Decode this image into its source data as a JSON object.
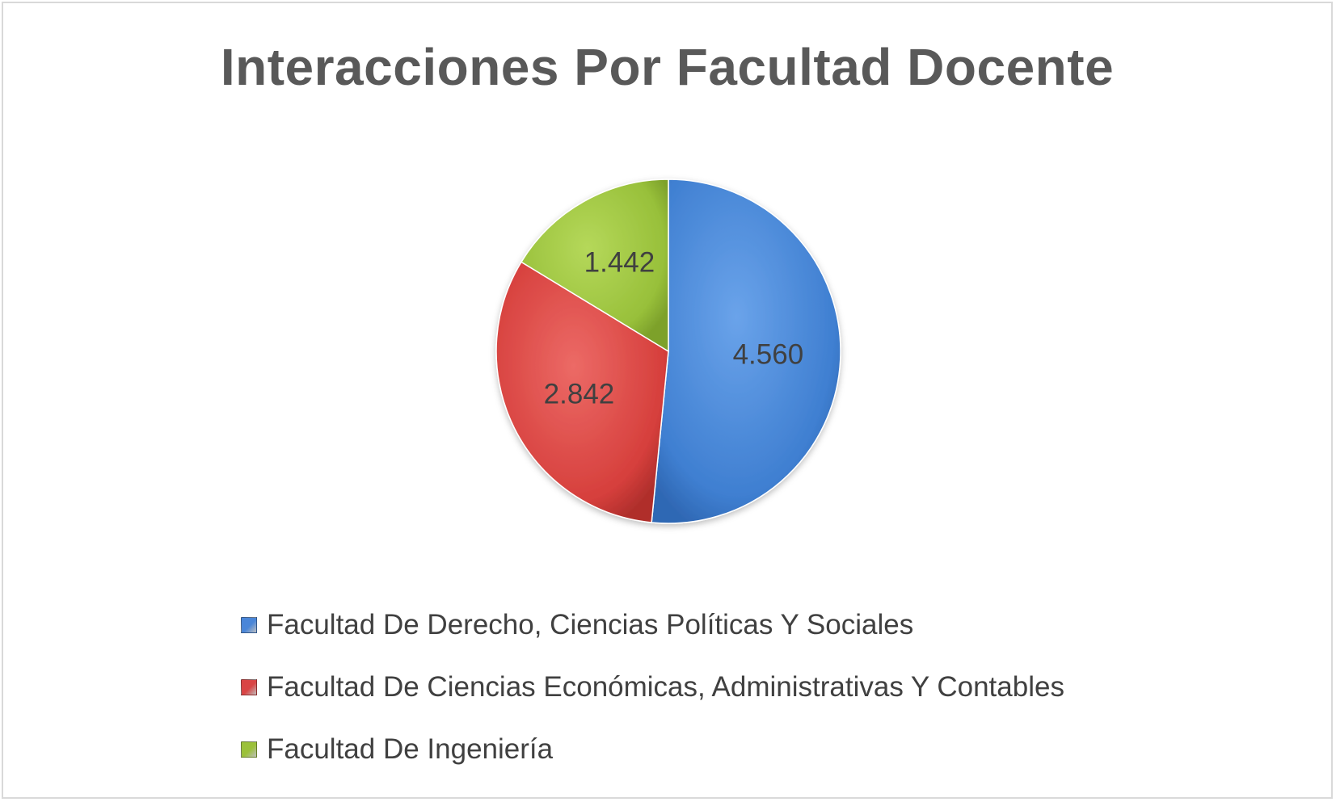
{
  "chart_data": {
    "type": "pie",
    "title": "Interacciones Por Facultad Docente",
    "slices": [
      {
        "name": "Facultad De Derecho, Ciencias Políticas Y Sociales",
        "value": 4560,
        "label": "4.560",
        "color": "#4a86d8"
      },
      {
        "name": "Facultad De Ciencias Económicas, Administrativas Y Contables",
        "value": 2842,
        "label": "2.842",
        "color": "#d94545"
      },
      {
        "name": "Facultad De Ingeniería",
        "value": 1442,
        "label": "1.442",
        "color": "#9bc13a"
      }
    ],
    "legend_position": "bottom",
    "start_angle": "12 o'clock",
    "direction": "clockwise"
  }
}
